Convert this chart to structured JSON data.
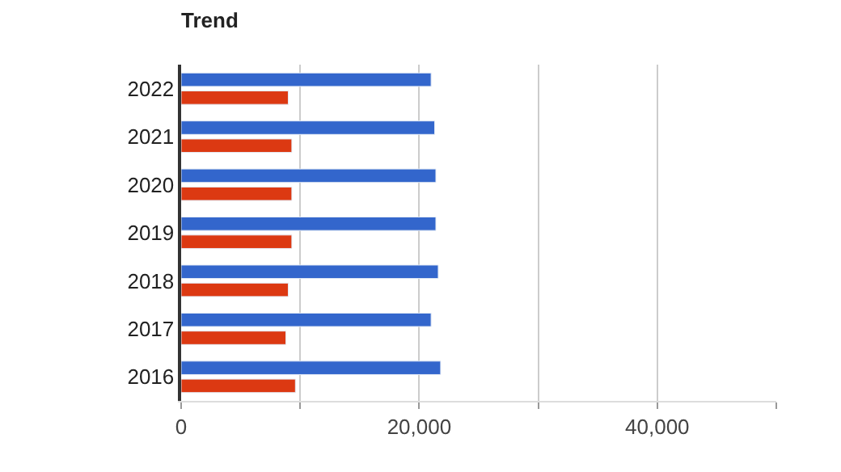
{
  "chart_data": {
    "type": "bar",
    "orientation": "horizontal",
    "title": "Trend",
    "categories": [
      "2022",
      "2021",
      "2020",
      "2019",
      "2018",
      "2017",
      "2016"
    ],
    "series": [
      {
        "color": "#3366cc",
        "values": [
          21000,
          21300,
          21400,
          21400,
          21600,
          21000,
          21800
        ]
      },
      {
        "color": "#dc3912",
        "values": [
          9000,
          9300,
          9300,
          9300,
          9000,
          8800,
          9600
        ]
      }
    ],
    "xlim": [
      0,
      50000
    ],
    "xticks": [
      0,
      {
        "value": 10000,
        "label": null
      },
      {
        "value": 20000,
        "label": "20,000"
      },
      {
        "value": 30000,
        "label": null
      },
      {
        "value": 40000,
        "label": "40,000"
      },
      {
        "value": 50000,
        "label": null
      }
    ],
    "grid": "x"
  }
}
